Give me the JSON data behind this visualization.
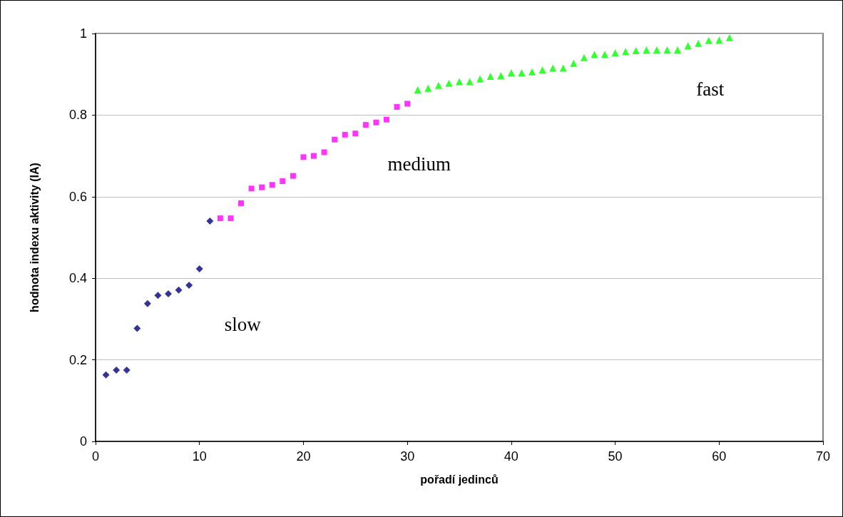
{
  "chart_data": {
    "type": "scatter",
    "xlabel": "pořadí jedinců",
    "ylabel": "hodnota indexu aktivity (IA)",
    "xlim": [
      0,
      70
    ],
    "xticks": [
      0,
      10,
      20,
      30,
      40,
      50,
      60,
      70
    ],
    "ylim": [
      0,
      1
    ],
    "yticks": [
      0,
      0.2,
      0.4,
      0.6,
      0.8,
      1
    ],
    "grid": "y",
    "series": [
      {
        "name": "slow",
        "color": "#000080",
        "marker": "diamond",
        "x": [
          1,
          2,
          3,
          4,
          5,
          6,
          7,
          8,
          9,
          10,
          11
        ],
        "values": [
          0.163,
          0.175,
          0.175,
          0.277,
          0.338,
          0.358,
          0.362,
          0.371,
          0.383,
          0.423,
          0.54
        ]
      },
      {
        "name": "medium",
        "color": "#ff00ff",
        "marker": "square",
        "x": [
          12,
          13,
          14,
          15,
          16,
          17,
          18,
          19,
          20,
          21,
          22,
          23,
          24,
          25,
          26,
          27,
          28,
          29,
          30
        ],
        "values": [
          0.547,
          0.547,
          0.584,
          0.62,
          0.623,
          0.629,
          0.638,
          0.651,
          0.697,
          0.7,
          0.709,
          0.74,
          0.752,
          0.755,
          0.776,
          0.782,
          0.789,
          0.82,
          0.828
        ]
      },
      {
        "name": "fast",
        "color": "#00ff00",
        "marker": "triangle",
        "x": [
          31,
          32,
          33,
          34,
          35,
          36,
          37,
          38,
          39,
          40,
          41,
          42,
          43,
          44,
          45,
          46,
          47,
          48,
          49,
          50,
          51,
          52,
          53,
          54,
          55,
          56,
          57,
          58,
          59,
          60,
          61
        ],
        "values": [
          0.862,
          0.866,
          0.873,
          0.878,
          0.882,
          0.882,
          0.889,
          0.895,
          0.897,
          0.904,
          0.904,
          0.906,
          0.911,
          0.915,
          0.915,
          0.927,
          0.941,
          0.949,
          0.949,
          0.953,
          0.956,
          0.958,
          0.96,
          0.96,
          0.96,
          0.96,
          0.97,
          0.976,
          0.983,
          0.984,
          0.99
        ]
      }
    ]
  }
}
